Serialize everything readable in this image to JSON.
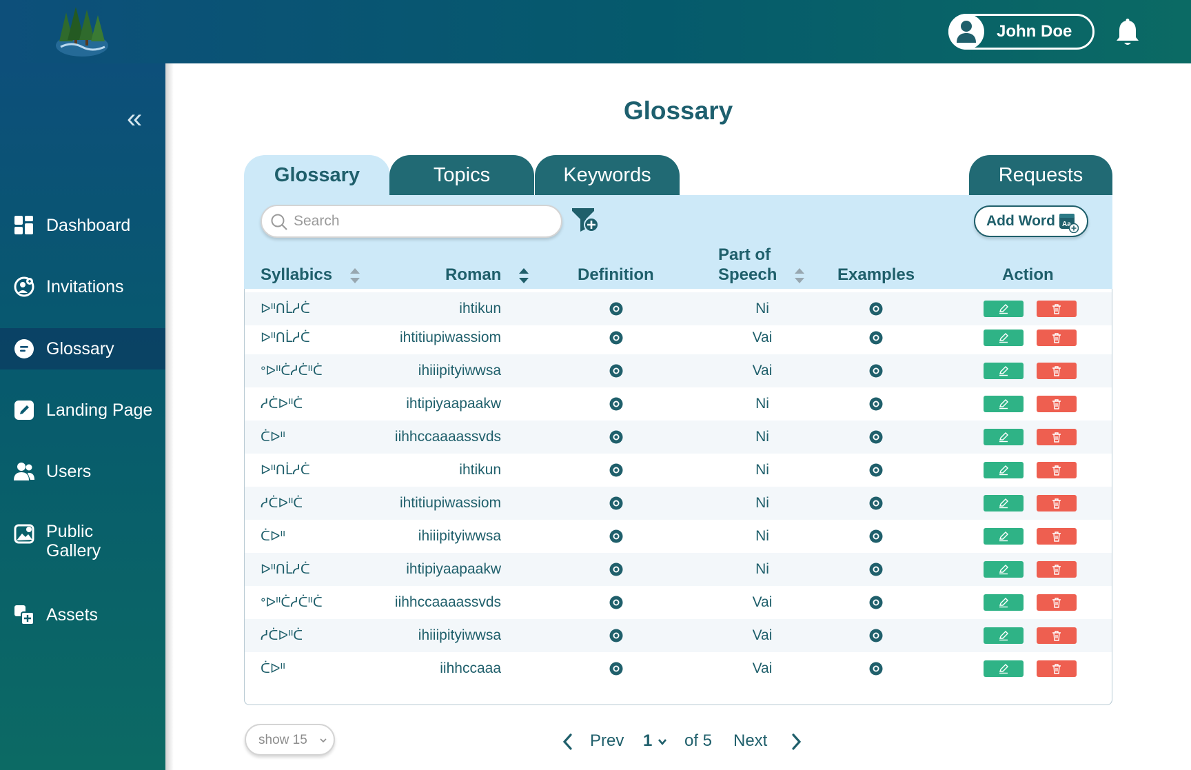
{
  "header": {
    "user_name": "John Doe"
  },
  "sidebar": {
    "items": [
      {
        "label": "Dashboard",
        "icon": "dashboard-icon"
      },
      {
        "label": "Invitations",
        "icon": "invitations-icon"
      },
      {
        "label": "Glossary",
        "icon": "glossary-icon",
        "active": true
      },
      {
        "label": "Landing Page",
        "icon": "landing-page-icon"
      },
      {
        "label": "Users",
        "icon": "users-icon"
      },
      {
        "label_line1": "Public",
        "label_line2": "Gallery",
        "icon": "gallery-icon"
      },
      {
        "label": "Assets",
        "icon": "assets-icon"
      }
    ]
  },
  "page": {
    "title": "Glossary"
  },
  "tabs": [
    "Glossary",
    "Topics",
    "Keywords",
    "Requests"
  ],
  "search": {
    "placeholder": "Search"
  },
  "add_word_label": "Add Word",
  "table": {
    "headers": {
      "syllabics": "Syllabics",
      "roman": "Roman",
      "definition": "Definition",
      "pos_line1": "Part of",
      "pos_line2": "Speech",
      "examples": "Examples",
      "action": "Action"
    },
    "rows": [
      {
        "syllabics": "ᐅᐦᑎᒫᓱᑖ",
        "roman": "ihtikun",
        "pos": "Ni"
      },
      {
        "syllabics": "ᐅᐦᑎᒫᓱᑖ",
        "roman": "ihtitiupiwassiom",
        "pos": "Vai"
      },
      {
        "syllabics": "ᐤᐅᐦᑖᓱᑖᐦᑖ",
        "roman": "ihiiipityiwwsa",
        "pos": "Vai"
      },
      {
        "syllabics": "ᓱᑖᐅᐦᑖ",
        "roman": "ihtipiyaapaakw",
        "pos": "Ni"
      },
      {
        "syllabics": "ᑖᐅᐦ",
        "roman": "iihhccaaaassvds",
        "pos": "Ni"
      },
      {
        "syllabics": "ᐅᐦᑎᒫᓱᑖ",
        "roman": "ihtikun",
        "pos": "Ni"
      },
      {
        "syllabics": "ᓱᑖᐅᐦᑖ",
        "roman": "ihtitiupiwassiom",
        "pos": "Ni"
      },
      {
        "syllabics": "ᑖᐅᐦ",
        "roman": "ihiiipityiwwsa",
        "pos": "Ni"
      },
      {
        "syllabics": "ᐅᐦᑎᒫᓱᑖ",
        "roman": "ihtipiyaapaakw",
        "pos": "Ni"
      },
      {
        "syllabics": "ᐤᐅᐦᑖᓱᑖᐦᑖ",
        "roman": "iihhccaaaassvds",
        "pos": "Vai"
      },
      {
        "syllabics": "ᓱᑖᐅᐦᑖ",
        "roman": "ihiiipityiwwsa",
        "pos": "Vai"
      },
      {
        "syllabics": "ᑖᐅᐦ",
        "roman": "iihhccaaa",
        "pos": "Vai"
      }
    ]
  },
  "pagination": {
    "show_label": "show 15",
    "prev_label": "Prev",
    "current_page": "1",
    "of_label": "of 5",
    "next_label": "Next"
  },
  "colors": {
    "primary": "#1f5f6b",
    "tab": "#216a74",
    "panel": "#cde9f8",
    "edit": "#2fb386",
    "delete": "#ee5f50"
  }
}
